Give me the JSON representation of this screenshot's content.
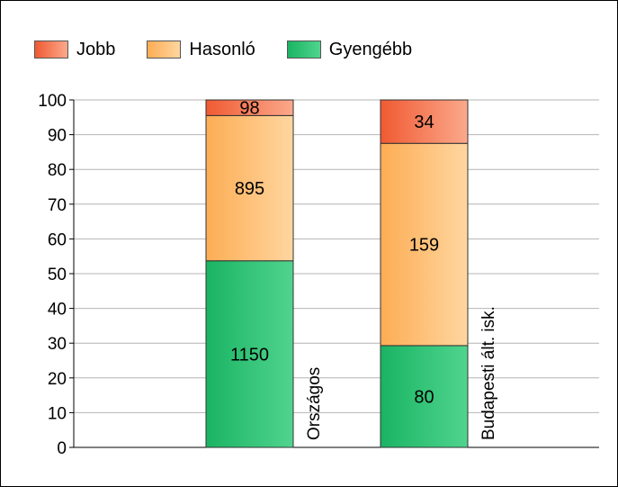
{
  "legend": {
    "items": [
      {
        "label": "Jobb",
        "color_from": "#f05a32",
        "color_to": "#fba98c"
      },
      {
        "label": "Hasonló",
        "color_from": "#fdad54",
        "color_to": "#fed6a0"
      },
      {
        "label": "Gyengébb",
        "color_from": "#1ab463",
        "color_to": "#50d48e"
      }
    ]
  },
  "chart_data": {
    "type": "bar",
    "stacked": true,
    "categories": [
      "Országos",
      "Budapesti ált. isk."
    ],
    "ylim": [
      0,
      100
    ],
    "yticks": [
      0,
      10,
      20,
      30,
      40,
      50,
      60,
      70,
      80,
      90,
      100
    ],
    "grid": true,
    "legend_position": "top-left",
    "series": [
      {
        "name": "Gyengébb",
        "values": [
          53.7,
          29.3
        ],
        "labels": [
          "1150",
          "80"
        ]
      },
      {
        "name": "Hasonló",
        "values": [
          41.8,
          58.2
        ],
        "labels": [
          "895",
          "159"
        ]
      },
      {
        "name": "Jobb",
        "values": [
          4.5,
          12.5
        ],
        "labels": [
          "98",
          "34"
        ]
      }
    ]
  }
}
